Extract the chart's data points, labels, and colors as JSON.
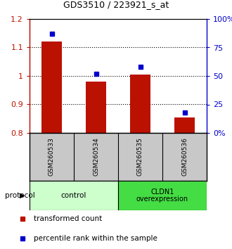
{
  "title": "GDS3510 / 223921_s_at",
  "samples": [
    "GSM260533",
    "GSM260534",
    "GSM260535",
    "GSM260536"
  ],
  "bar_values": [
    1.12,
    0.98,
    1.005,
    0.855
  ],
  "bar_baseline": 0.8,
  "percentile_values": [
    87,
    52,
    58,
    18
  ],
  "ylim_left": [
    0.8,
    1.2
  ],
  "ylim_right": [
    0,
    100
  ],
  "yticks_left": [
    0.8,
    0.9,
    1.0,
    1.1,
    1.2
  ],
  "yticks_right": [
    0,
    25,
    50,
    75,
    100
  ],
  "ytick_labels_left": [
    "0.8",
    "0.9",
    "1",
    "1.1",
    "1.2"
  ],
  "ytick_labels_right": [
    "0%",
    "25",
    "50",
    "75",
    "100%"
  ],
  "bar_color": "#bb1100",
  "square_color": "#0000cc",
  "bg_color": "#ffffff",
  "sample_box_color": "#c8c8c8",
  "control_color": "#ccffcc",
  "overexp_color": "#44dd44",
  "control_label": "control",
  "overexp_label": "CLDN1\noverexpression",
  "protocol_label": "protocol",
  "legend_bar_label": "transformed count",
  "legend_sq_label": "percentile rank within the sample",
  "bar_width": 0.45
}
